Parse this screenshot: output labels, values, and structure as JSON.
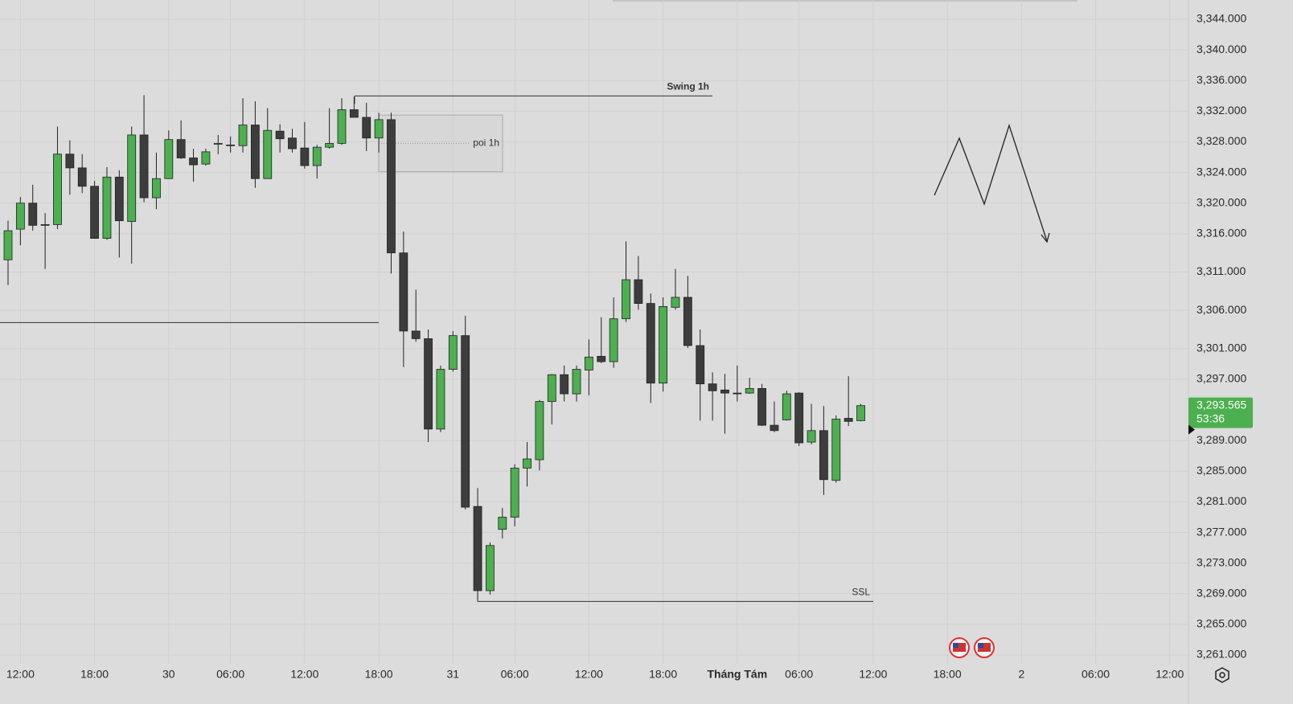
{
  "chart_data": {
    "type": "candlestick",
    "categories": [
      null,
      "12:00",
      null,
      null,
      null,
      null,
      null,
      "18:00",
      null,
      null,
      null,
      null,
      null,
      "30",
      null,
      null,
      null,
      null,
      "06:00",
      null,
      null,
      null,
      null,
      null,
      "12:00",
      null,
      null,
      null,
      null,
      null,
      "18:00",
      null,
      null,
      null,
      null,
      null,
      "31",
      null,
      null,
      null,
      null,
      "06:00",
      null,
      null,
      null,
      null,
      null,
      "12:00",
      null,
      null,
      null,
      null,
      null,
      "18:00",
      null,
      null,
      null,
      null,
      null,
      "Tháng Tám",
      null,
      null,
      null,
      null,
      "06:00",
      null,
      null,
      null,
      null,
      null,
      "12:00",
      null,
      null,
      null,
      null,
      null,
      "18:00",
      null,
      null,
      null,
      null,
      null,
      "2",
      null,
      null,
      null,
      null,
      null,
      "06:00",
      null,
      null,
      null,
      null,
      null,
      "12:00"
    ],
    "open": [
      3312.6,
      3316.6,
      3320.0,
      3317.1,
      3317.2,
      3326.4,
      3324.6,
      3322.2,
      3315.4,
      3323.4,
      3317.6,
      3328.9,
      3320.7,
      3323.2,
      3328.3,
      3325.9,
      3325.1,
      3327.7,
      3327.6,
      3327.5,
      3330.2,
      3323.2,
      3329.4,
      3328.5,
      3327.2,
      3324.9,
      3327.3,
      3327.8,
      3332.2,
      3331.2,
      3328.5,
      3330.9,
      3313.5,
      3303.3,
      3302.3,
      3290.5,
      3298.3,
      3302.7,
      3280.4,
      3269.4,
      3277.4,
      3279.0,
      3285.4,
      3286.5,
      3294.1,
      3297.6,
      3295.1,
      3298.2,
      3300.0,
      3299.3,
      3304.9,
      3310.0,
      3306.9,
      3296.5,
      3306.4,
      3307.7,
      3301.4,
      3296.4,
      3295.6,
      3295.2,
      3295.2,
      3295.8,
      3291.0,
      3291.7,
      3295.2,
      3288.8,
      3290.3,
      3283.8,
      3291.9,
      3291.6,
      null,
      null,
      null,
      null,
      null,
      null,
      null,
      null,
      null,
      null,
      null,
      null,
      null,
      null,
      null,
      null,
      null,
      null,
      null,
      null,
      null,
      null,
      null,
      null,
      null
    ],
    "high": [
      3317.7,
      3320.8,
      3322.4,
      3318.7,
      3330.0,
      3328.2,
      3326.4,
      3322.9,
      3324.7,
      3324.3,
      3330.0,
      3334.1,
      3326.6,
      3329.5,
      3330.8,
      3327.1,
      3327.1,
      3328.9,
      3328.7,
      3333.7,
      3333.3,
      3332.4,
      3330.3,
      3329.7,
      3330.6,
      3327.6,
      3332.4,
      3333.7,
      3333.9,
      3333.1,
      3331.8,
      3331.8,
      3316.3,
      3308.7,
      3303.5,
      3298.8,
      3303.3,
      3305.3,
      3282.8,
      3275.7,
      3280.2,
      3285.9,
      3288.8,
      3294.3,
      3297.7,
      3298.8,
      3298.8,
      3302.2,
      3305.1,
      3307.7,
      3315.0,
      3313.1,
      3308.2,
      3307.7,
      3311.4,
      3310.5,
      3303.5,
      3297.9,
      3297.7,
      3298.8,
      3297.2,
      3296.4,
      3294.1,
      3295.5,
      3295.3,
      3293.8,
      3293.5,
      3292.3,
      3297.4,
      3293.8,
      null,
      null,
      null,
      null,
      null,
      null,
      null,
      null,
      null,
      null,
      null,
      null,
      null,
      null,
      null,
      null,
      null,
      null,
      null,
      null,
      null,
      null,
      null,
      null,
      null
    ],
    "low": [
      3309.3,
      3314.5,
      3316.4,
      3311.4,
      3316.6,
      3321.1,
      3321.3,
      3315.4,
      3315.2,
      3312.9,
      3312.1,
      3320.1,
      3319.2,
      3323.2,
      3325.8,
      3322.8,
      3324.9,
      3326.4,
      3326.6,
      3326.6,
      3322.0,
      3323.2,
      3326.6,
      3326.6,
      3324.5,
      3323.2,
      3327.1,
      3327.6,
      3331.2,
      3326.8,
      3326.6,
      3310.8,
      3298.6,
      3301.9,
      3288.8,
      3290.1,
      3298.0,
      3280.0,
      3268.1,
      3268.9,
      3276.2,
      3277.8,
      3283.0,
      3285.1,
      3291.1,
      3294.1,
      3294.1,
      3294.9,
      3299.1,
      3298.5,
      3304.5,
      3306.1,
      3293.9,
      3295.4,
      3306.1,
      3301.1,
      3291.6,
      3291.6,
      3289.9,
      3294.1,
      3295.1,
      3290.9,
      3290.1,
      3291.6,
      3288.3,
      3288.5,
      3281.9,
      3283.5,
      3290.9,
      3291.5,
      null,
      null,
      null,
      null,
      null,
      null,
      null,
      null,
      null,
      null,
      null,
      null,
      null,
      null,
      null,
      null,
      null,
      null,
      null,
      null,
      null,
      null,
      null,
      null,
      null
    ],
    "close": [
      3316.4,
      3320.0,
      3317.1,
      3317.2,
      3326.4,
      3324.6,
      3322.2,
      3315.4,
      3323.4,
      3317.7,
      3328.9,
      3320.7,
      3323.2,
      3328.3,
      3325.9,
      3325.0,
      3326.7,
      3327.8,
      3327.6,
      3330.2,
      3323.2,
      3329.5,
      3328.4,
      3327.1,
      3324.9,
      3327.3,
      3327.8,
      3332.2,
      3331.2,
      3328.5,
      3330.9,
      3313.5,
      3303.3,
      3302.3,
      3290.5,
      3298.3,
      3302.7,
      3280.3,
      3269.4,
      3275.3,
      3279.0,
      3285.4,
      3286.6,
      3294.1,
      3297.6,
      3295.1,
      3298.3,
      3299.9,
      3299.3,
      3304.9,
      3310.0,
      3306.9,
      3296.5,
      3306.5,
      3307.7,
      3301.4,
      3296.4,
      3295.5,
      3295.2,
      3295.1,
      3295.8,
      3291.0,
      3290.3,
      3295.1,
      3288.7,
      3290.3,
      3283.9,
      3291.8,
      3291.5,
      3293.565,
      null,
      null,
      null,
      null,
      null,
      null,
      null,
      null,
      null,
      null,
      null,
      null,
      null,
      null,
      null,
      null,
      null,
      null,
      null,
      null,
      null,
      null,
      null,
      null,
      null
    ],
    "up_color": "#4caf50",
    "down_color": "#3d3d3d",
    "ylim": [
      3259.85,
      3346.52
    ],
    "yticks": [
      {
        "value": 3344,
        "label": "3,344.000"
      },
      {
        "value": 3340,
        "label": "3,340.000"
      },
      {
        "value": 3336,
        "label": "3,336.000"
      },
      {
        "value": 3332,
        "label": "3,332.000"
      },
      {
        "value": 3328,
        "label": "3,328.000"
      },
      {
        "value": 3324,
        "label": "3,324.000"
      },
      {
        "value": 3320,
        "label": "3,320.000"
      },
      {
        "value": 3316,
        "label": "3,316.000"
      },
      {
        "value": 3311,
        "label": "3,311.000"
      },
      {
        "value": 3306,
        "label": "3,306.000"
      },
      {
        "value": 3301,
        "label": "3,301.000"
      },
      {
        "value": 3297,
        "label": "3,297.000"
      },
      {
        "value": 3289,
        "label": "3,289.000"
      },
      {
        "value": 3285,
        "label": "3,285.000"
      },
      {
        "value": 3281,
        "label": "3,281.000"
      },
      {
        "value": 3277,
        "label": "3,277.000"
      },
      {
        "value": 3273,
        "label": "3,273.000"
      },
      {
        "value": 3269,
        "label": "3,269.000"
      },
      {
        "value": 3265,
        "label": "3,265.000"
      },
      {
        "value": 3261,
        "label": "3,261.000"
      }
    ],
    "grid": true,
    "last_price": {
      "value": 3293.565,
      "label": "3,293.565"
    },
    "countdown": "53:36",
    "levels": [
      {
        "label": "Swing 1h",
        "value": 3334.0
      },
      {
        "label": "SSL",
        "value": 3268.0
      },
      {
        "value": 3304.4
      }
    ],
    "zone": {
      "label": "poi 1h",
      "top": 3331.5,
      "bottom": 3324.1
    }
  }
}
